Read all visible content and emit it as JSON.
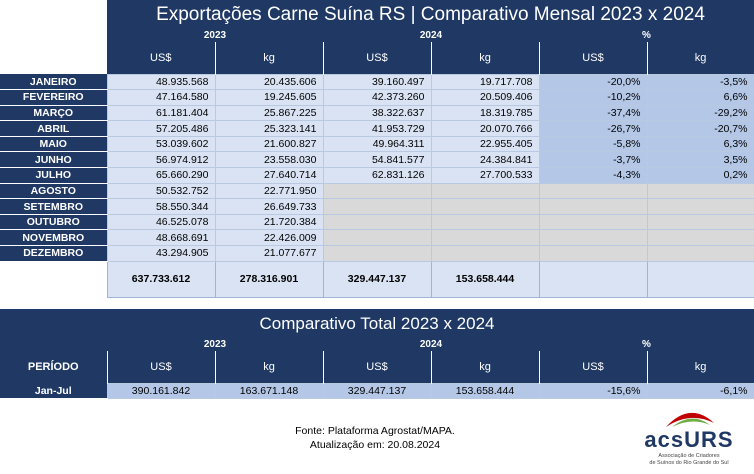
{
  "title": "Exportações Carne Suína RS | Comparativo Mensal 2023 x 2024",
  "years": {
    "y1": "2023",
    "y2": "2024",
    "pct": "%"
  },
  "columns": [
    "US$",
    "kg",
    "US$",
    "kg",
    "US$",
    "kg"
  ],
  "months": [
    {
      "name": "JANEIRO",
      "usd23": "48.935.568",
      "kg23": "20.435.606",
      "usd24": "39.160.497",
      "kg24": "19.717.708",
      "pusd": "-20,0%",
      "pkg": "-3,5%"
    },
    {
      "name": "FEVEREIRO",
      "usd23": "47.164.580",
      "kg23": "19.245.605",
      "usd24": "42.373.260",
      "kg24": "20.509.406",
      "pusd": "-10,2%",
      "pkg": "6,6%"
    },
    {
      "name": "MARÇO",
      "usd23": "61.181.404",
      "kg23": "25.867.225",
      "usd24": "38.322.637",
      "kg24": "18.319.785",
      "pusd": "-37,4%",
      "pkg": "-29,2%"
    },
    {
      "name": "ABRIL",
      "usd23": "57.205.486",
      "kg23": "25.323.141",
      "usd24": "41.953.729",
      "kg24": "20.070.766",
      "pusd": "-26,7%",
      "pkg": "-20,7%"
    },
    {
      "name": "MAIO",
      "usd23": "53.039.602",
      "kg23": "21.600.827",
      "usd24": "49.964.311",
      "kg24": "22.955.405",
      "pusd": "-5,8%",
      "pkg": "6,3%"
    },
    {
      "name": "JUNHO",
      "usd23": "56.974.912",
      "kg23": "23.558.030",
      "usd24": "54.841.577",
      "kg24": "24.384.841",
      "pusd": "-3,7%",
      "pkg": "3,5%"
    },
    {
      "name": "JULHO",
      "usd23": "65.660.290",
      "kg23": "27.640.714",
      "usd24": "62.831.126",
      "kg24": "27.700.533",
      "pusd": "-4,3%",
      "pkg": "0,2%"
    },
    {
      "name": "AGOSTO",
      "usd23": "50.532.752",
      "kg23": "22.771.950",
      "usd24": "",
      "kg24": "",
      "pusd": "",
      "pkg": ""
    },
    {
      "name": "SETEMBRO",
      "usd23": "58.550.344",
      "kg23": "26.649.733",
      "usd24": "",
      "kg24": "",
      "pusd": "",
      "pkg": ""
    },
    {
      "name": "OUTUBRO",
      "usd23": "46.525.078",
      "kg23": "21.720.384",
      "usd24": "",
      "kg24": "",
      "pusd": "",
      "pkg": ""
    },
    {
      "name": "NOVEMBRO",
      "usd23": "48.668.691",
      "kg23": "22.426.009",
      "usd24": "",
      "kg24": "",
      "pusd": "",
      "pkg": ""
    },
    {
      "name": "DEZEMBRO",
      "usd23": "43.294.905",
      "kg23": "21.077.677",
      "usd24": "",
      "kg24": "",
      "pusd": "",
      "pkg": ""
    }
  ],
  "totals": {
    "usd23": "637.733.612",
    "kg23": "278.316.901",
    "usd24": "329.447.137",
    "kg24": "153.658.444"
  },
  "title2": "Comparativo Total 2023 x 2024",
  "period_header": "PERÍODO",
  "period_row": {
    "name": "Jan-Jul",
    "usd23": "390.161.842",
    "kg23": "163.671.148",
    "usd24": "329.447.137",
    "kg24": "153.658.444",
    "pusd": "-15,6%",
    "pkg": "-6,1%"
  },
  "footer": {
    "source": "Fonte: Plataforma Agrostat/MAPA.",
    "update": "Atualização em: 20.08.2024"
  },
  "logo": {
    "brand_a": "acs",
    "brand_b": "URS",
    "sub1": "Associação de Criadores",
    "sub2": "de Suínos do Rio Grande do Sul"
  },
  "colors": {
    "navy": "#1f3864",
    "light": "#dae3f3",
    "mid": "#b4c7e7",
    "accent_red": "#c00000",
    "accent_green": "#70ad47"
  }
}
